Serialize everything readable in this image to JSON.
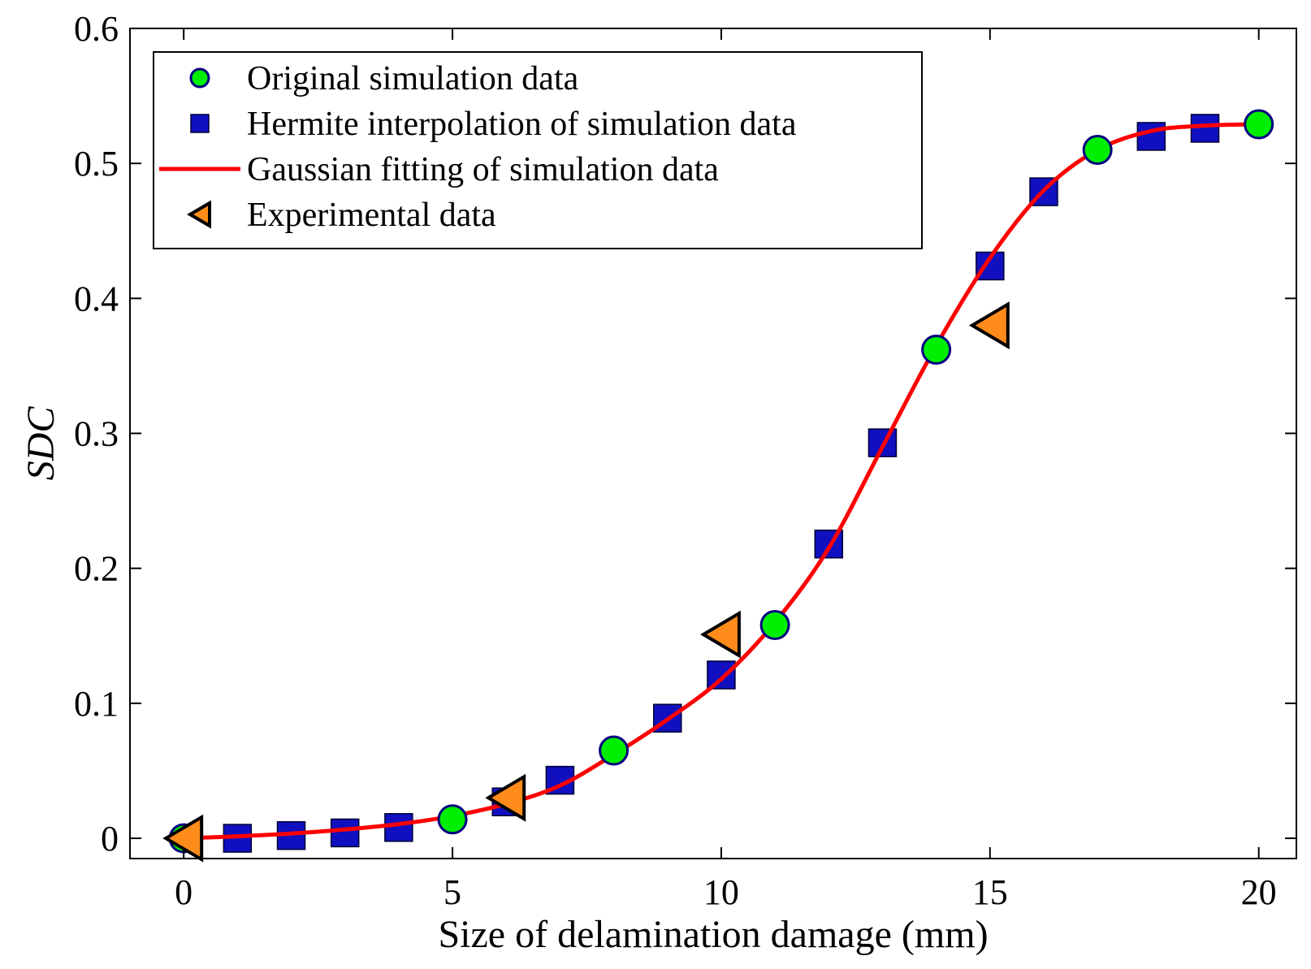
{
  "chart_data": {
    "type": "scatter",
    "title": "",
    "xlabel": "Size of delamination damage (mm)",
    "ylabel": "SDC",
    "xlim": [
      -1,
      20.7
    ],
    "ylim": [
      -0.015,
      0.6
    ],
    "xticks": [
      0,
      5,
      10,
      15,
      20
    ],
    "xtick_labels": [
      "0",
      "5",
      "10",
      "15",
      "20"
    ],
    "yticks": [
      0,
      0.1,
      0.2,
      0.3,
      0.4,
      0.5,
      0.6
    ],
    "ytick_labels": [
      "0",
      "0.1",
      "0.2",
      "0.3",
      "0.4",
      "0.5",
      "0.6"
    ],
    "grid": false,
    "legend_position": "top-left",
    "series": [
      {
        "name": "Original simulation data",
        "kind": "circle",
        "color": "#00ee00",
        "x": [
          0,
          5,
          8,
          11,
          14,
          17,
          20
        ],
        "y": [
          0,
          0.014,
          0.065,
          0.158,
          0.362,
          0.51,
          0.529
        ]
      },
      {
        "name": "Hermite interpolation of simulation data",
        "kind": "square",
        "color": "#1010c0",
        "x": [
          1,
          2,
          3,
          4,
          6,
          7,
          9,
          10,
          12,
          13,
          15,
          16,
          18,
          19
        ],
        "y": [
          0.0,
          0.002,
          0.004,
          0.008,
          0.027,
          0.043,
          0.089,
          0.121,
          0.218,
          0.293,
          0.424,
          0.479,
          0.52,
          0.526
        ]
      },
      {
        "name": "Gaussian fitting of simulation data",
        "kind": "line",
        "color": "#ff0000",
        "x": [
          0,
          1,
          2,
          3,
          4,
          5,
          6,
          7,
          8,
          9,
          10,
          11,
          12,
          13,
          14,
          15,
          16,
          17,
          18,
          19,
          20
        ],
        "y": [
          0.0,
          0.0015,
          0.0035,
          0.0065,
          0.0105,
          0.0165,
          0.0255,
          0.039,
          0.062,
          0.088,
          0.118,
          0.16,
          0.215,
          0.29,
          0.365,
          0.43,
          0.48,
          0.51,
          0.524,
          0.528,
          0.529
        ]
      },
      {
        "name": "Experimental data",
        "kind": "triangle-left",
        "color": "#ff8c1a",
        "x": [
          0,
          6,
          10,
          15
        ],
        "y": [
          0.0,
          0.03,
          0.151,
          0.38
        ]
      }
    ]
  }
}
